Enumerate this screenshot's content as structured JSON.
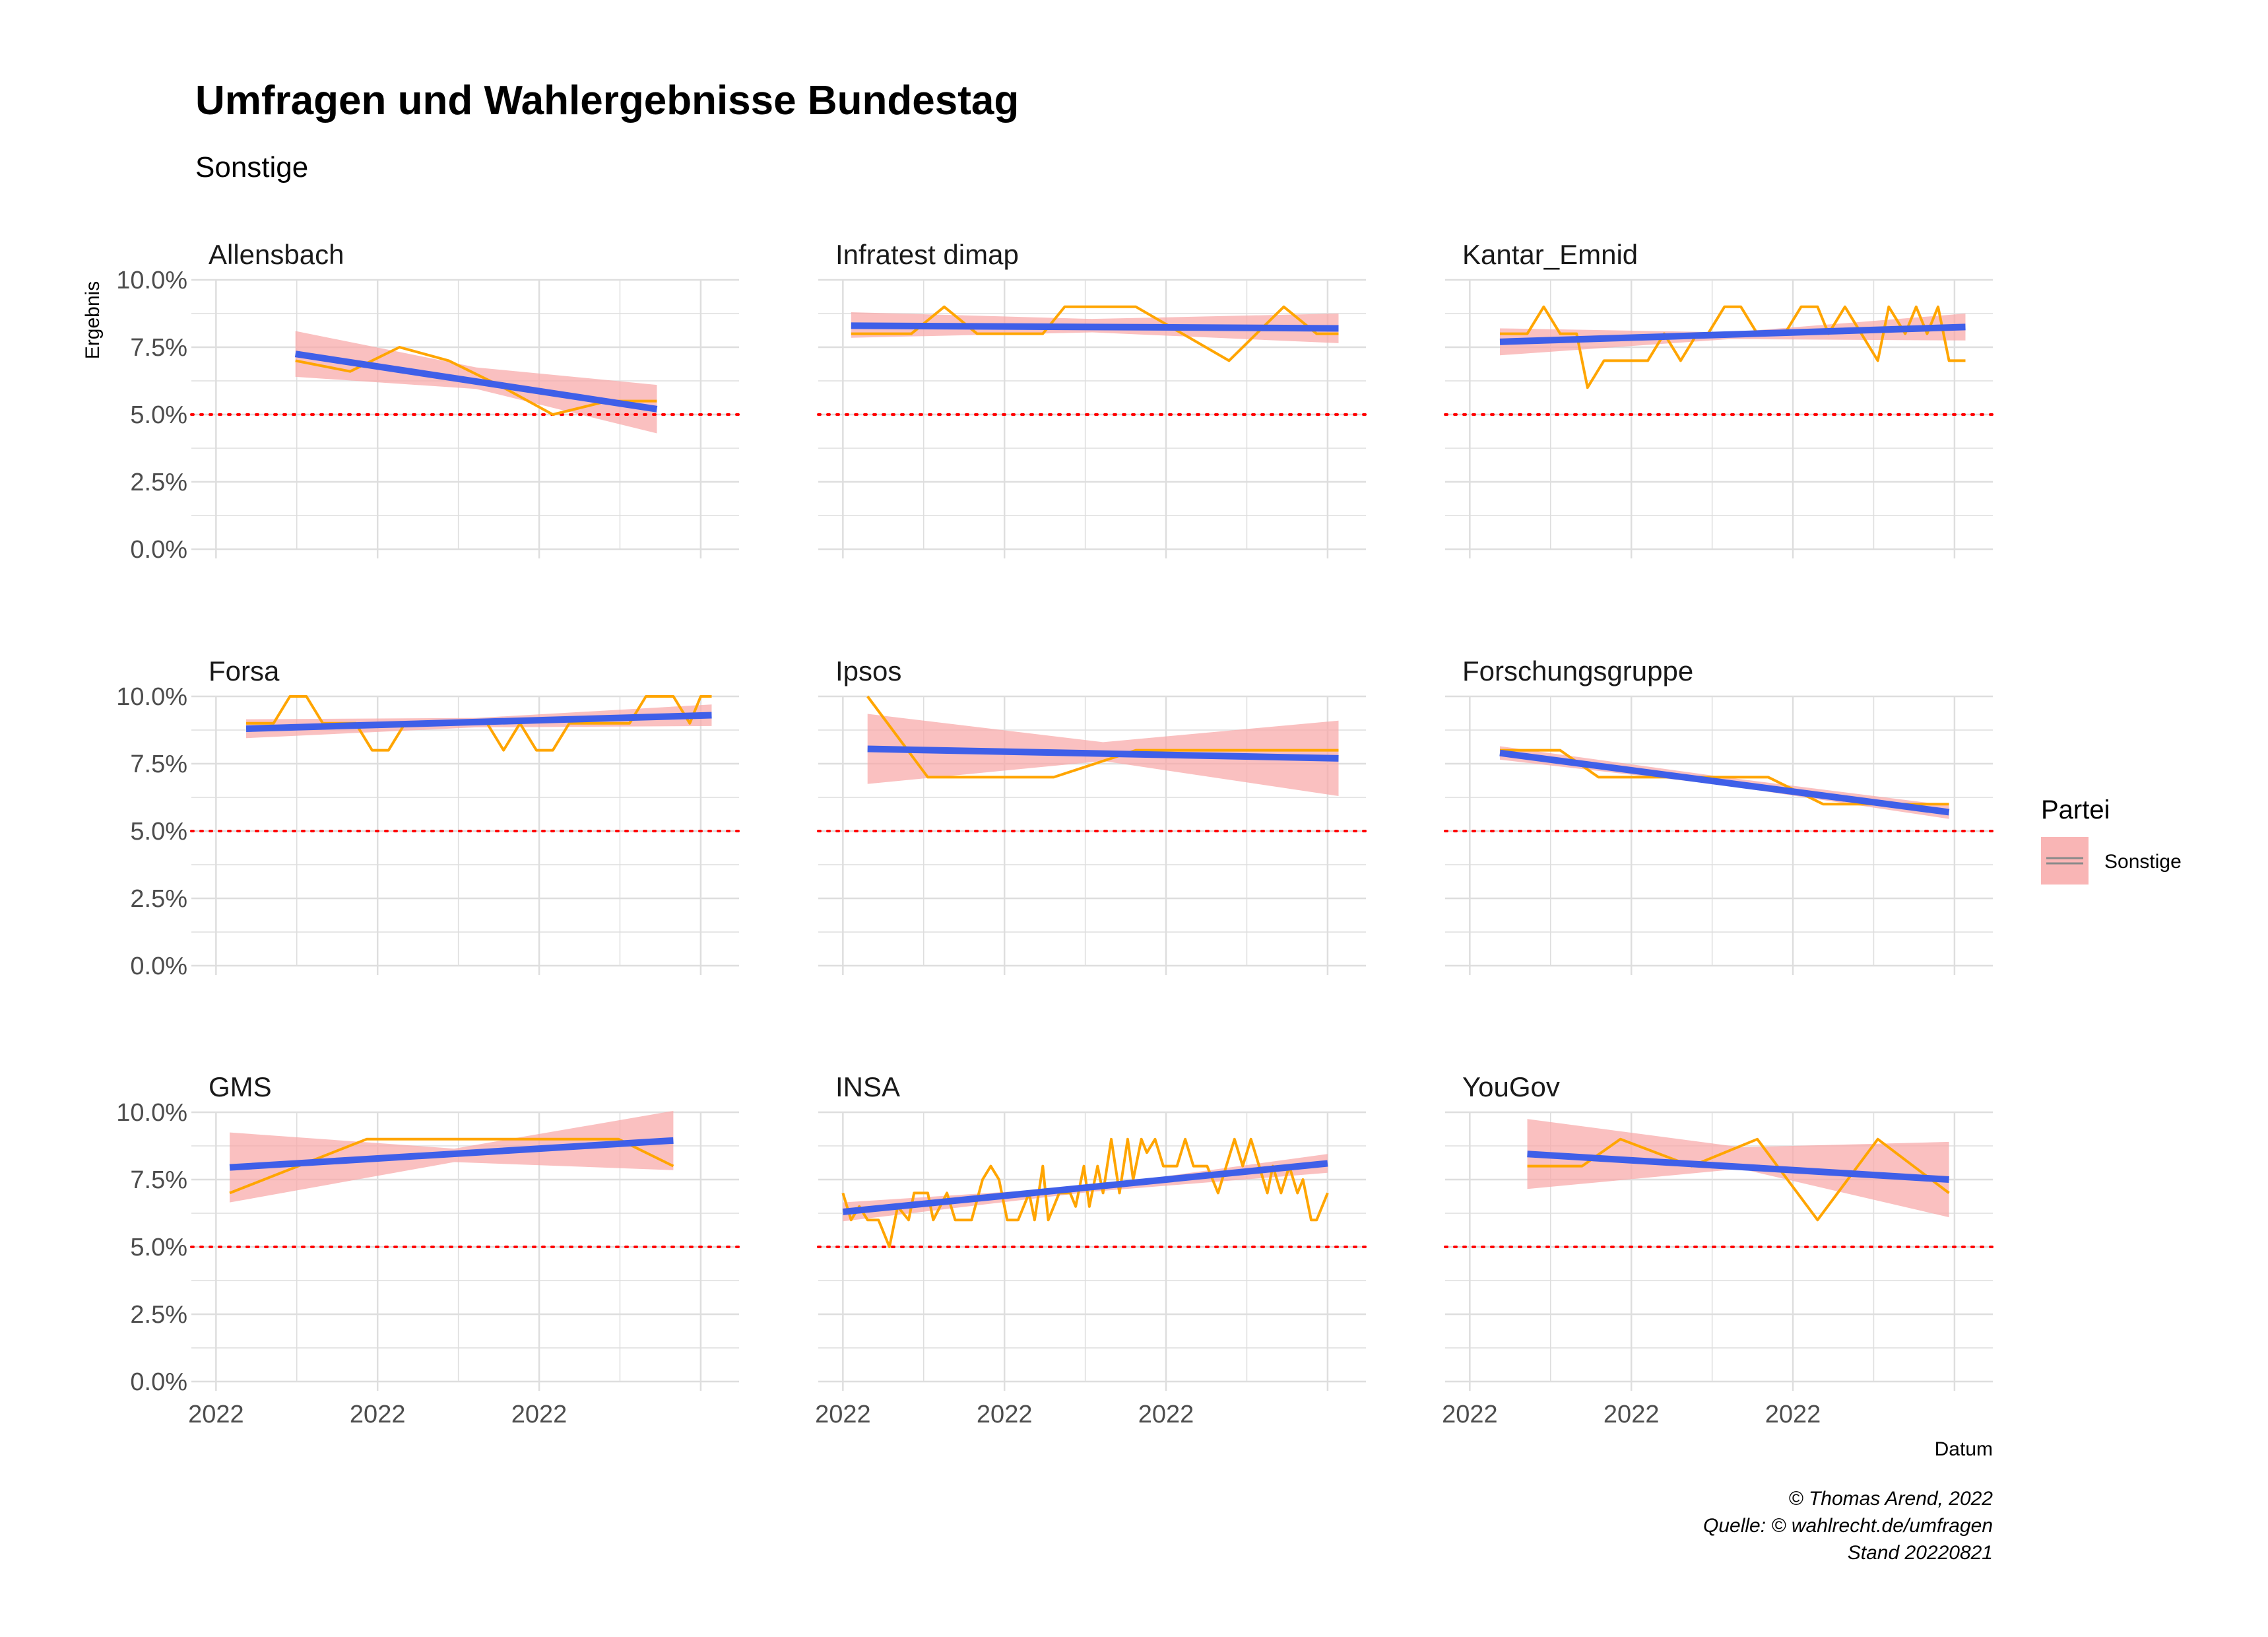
{
  "title": "Umfragen und Wahlergebnisse Bundestag",
  "subtitle": "Sonstige",
  "y_axis_label": "Ergebnis",
  "x_axis_label": "Datum",
  "legend": {
    "title": "Partei",
    "label": "Sonstige"
  },
  "caption": [
    "© Thomas Arend, 2022",
    "Quelle: © wahlrecht.de/umfragen",
    "Stand 20220821"
  ],
  "colors": {
    "poll_line": "#FFA500",
    "trend_line": "#3F5FE8",
    "ribbon": "#F8A8A8",
    "threshold": "#FF0000",
    "grid": "#DEDEDE"
  },
  "chart_data": {
    "type": "line",
    "facets": [
      "Allensbach",
      "Infratest dimap",
      "Kantar_Emnid",
      "Forsa",
      "Ipsos",
      "Forschungsgruppe",
      "GMS",
      "INSA",
      "YouGov"
    ],
    "ylim": [
      0,
      10
    ],
    "y_ticks": [
      0,
      2.5,
      5,
      7.5,
      10
    ],
    "y_tick_labels": [
      "0.0%",
      "2.5%",
      "5.0%",
      "7.5%",
      "10.0%"
    ],
    "x_tick_labels": [
      "2022",
      "2022",
      "2022"
    ],
    "threshold": 5.0,
    "grid": true,
    "legend_position": "right",
    "panels": [
      {
        "name": "Allensbach",
        "poll": [
          [
            0.19,
            7.0
          ],
          [
            0.29,
            6.6
          ],
          [
            0.38,
            7.5
          ],
          [
            0.47,
            7.0
          ],
          [
            0.57,
            6.0
          ],
          [
            0.66,
            5.0
          ],
          [
            0.76,
            5.5
          ],
          [
            0.85,
            5.5
          ]
        ],
        "trend": [
          [
            0.19,
            7.25
          ],
          [
            0.85,
            5.2
          ]
        ],
        "band_upper": [
          [
            0.19,
            8.1
          ],
          [
            0.52,
            6.75
          ],
          [
            0.85,
            6.1
          ]
        ],
        "band_lower": [
          [
            0.19,
            6.4
          ],
          [
            0.52,
            5.95
          ],
          [
            0.85,
            4.3
          ]
        ]
      },
      {
        "name": "Infratest dimap",
        "poll": [
          [
            0.06,
            8.0
          ],
          [
            0.17,
            8.0
          ],
          [
            0.23,
            9.0
          ],
          [
            0.29,
            8.0
          ],
          [
            0.41,
            8.0
          ],
          [
            0.45,
            9.0
          ],
          [
            0.58,
            9.0
          ],
          [
            0.75,
            7.0
          ],
          [
            0.85,
            9.0
          ],
          [
            0.91,
            8.0
          ],
          [
            0.95,
            8.0
          ]
        ],
        "trend": [
          [
            0.06,
            8.3
          ],
          [
            0.95,
            8.2
          ]
        ],
        "band_upper": [
          [
            0.06,
            8.8
          ],
          [
            0.5,
            8.55
          ],
          [
            0.95,
            8.75
          ]
        ],
        "band_lower": [
          [
            0.06,
            7.85
          ],
          [
            0.5,
            8.05
          ],
          [
            0.95,
            7.65
          ]
        ]
      },
      {
        "name": "Kantar_Emnid",
        "poll": [
          [
            0.1,
            8.0
          ],
          [
            0.15,
            8.0
          ],
          [
            0.18,
            9.0
          ],
          [
            0.21,
            8.0
          ],
          [
            0.24,
            8.0
          ],
          [
            0.26,
            6.0
          ],
          [
            0.29,
            7.0
          ],
          [
            0.37,
            7.0
          ],
          [
            0.4,
            8.0
          ],
          [
            0.43,
            7.0
          ],
          [
            0.46,
            8.0
          ],
          [
            0.48,
            8.0
          ],
          [
            0.51,
            9.0
          ],
          [
            0.54,
            9.0
          ],
          [
            0.57,
            8.0
          ],
          [
            0.62,
            8.0
          ],
          [
            0.65,
            9.0
          ],
          [
            0.68,
            9.0
          ],
          [
            0.7,
            8.0
          ],
          [
            0.73,
            9.0
          ],
          [
            0.76,
            8.0
          ],
          [
            0.79,
            7.0
          ],
          [
            0.81,
            9.0
          ],
          [
            0.84,
            8.0
          ],
          [
            0.86,
            9.0
          ],
          [
            0.88,
            8.0
          ],
          [
            0.9,
            9.0
          ],
          [
            0.92,
            7.0
          ],
          [
            0.95,
            7.0
          ]
        ],
        "trend": [
          [
            0.1,
            7.7
          ],
          [
            0.95,
            8.25
          ]
        ],
        "band_upper": [
          [
            0.1,
            8.2
          ],
          [
            0.52,
            8.05
          ],
          [
            0.95,
            8.75
          ]
        ],
        "band_lower": [
          [
            0.1,
            7.2
          ],
          [
            0.52,
            7.8
          ],
          [
            0.95,
            7.75
          ]
        ]
      },
      {
        "name": "Forsa",
        "poll": [
          [
            0.1,
            9.0
          ],
          [
            0.15,
            9.0
          ],
          [
            0.18,
            10.0
          ],
          [
            0.21,
            10.0
          ],
          [
            0.24,
            9.0
          ],
          [
            0.27,
            9.0
          ],
          [
            0.3,
            9.0
          ],
          [
            0.33,
            8.0
          ],
          [
            0.36,
            8.0
          ],
          [
            0.39,
            9.0
          ],
          [
            0.5,
            9.0
          ],
          [
            0.54,
            9.0
          ],
          [
            0.57,
            8.0
          ],
          [
            0.6,
            9.0
          ],
          [
            0.63,
            8.0
          ],
          [
            0.66,
            8.0
          ],
          [
            0.69,
            9.0
          ],
          [
            0.8,
            9.0
          ],
          [
            0.83,
            10.0
          ],
          [
            0.88,
            10.0
          ],
          [
            0.91,
            9.0
          ],
          [
            0.93,
            10.0
          ],
          [
            0.95,
            10.0
          ]
        ],
        "trend": [
          [
            0.1,
            8.8
          ],
          [
            0.95,
            9.3
          ]
        ],
        "band_upper": [
          [
            0.1,
            9.15
          ],
          [
            0.52,
            9.2
          ],
          [
            0.95,
            9.7
          ]
        ],
        "band_lower": [
          [
            0.1,
            8.45
          ],
          [
            0.52,
            8.85
          ],
          [
            0.95,
            8.9
          ]
        ]
      },
      {
        "name": "Ipsos",
        "poll": [
          [
            0.09,
            10.0
          ],
          [
            0.2,
            7.0
          ],
          [
            0.43,
            7.0
          ],
          [
            0.58,
            8.0
          ],
          [
            0.95,
            8.0
          ]
        ],
        "trend": [
          [
            0.09,
            8.05
          ],
          [
            0.95,
            7.7
          ]
        ],
        "band_upper": [
          [
            0.09,
            9.35
          ],
          [
            0.52,
            8.3
          ],
          [
            0.95,
            9.1
          ]
        ],
        "band_lower": [
          [
            0.09,
            6.75
          ],
          [
            0.52,
            7.6
          ],
          [
            0.95,
            6.3
          ]
        ]
      },
      {
        "name": "Forschungsgruppe",
        "poll": [
          [
            0.1,
            8.0
          ],
          [
            0.21,
            8.0
          ],
          [
            0.28,
            7.0
          ],
          [
            0.38,
            7.0
          ],
          [
            0.48,
            7.0
          ],
          [
            0.59,
            7.0
          ],
          [
            0.69,
            6.0
          ],
          [
            0.79,
            6.0
          ],
          [
            0.92,
            6.0
          ]
        ],
        "trend": [
          [
            0.1,
            7.9
          ],
          [
            0.92,
            5.7
          ]
        ],
        "band_upper": [
          [
            0.1,
            8.15
          ],
          [
            0.51,
            7.0
          ],
          [
            0.92,
            5.95
          ]
        ],
        "band_lower": [
          [
            0.1,
            7.65
          ],
          [
            0.51,
            6.7
          ],
          [
            0.92,
            5.45
          ]
        ]
      },
      {
        "name": "GMS",
        "poll": [
          [
            0.07,
            7.0
          ],
          [
            0.32,
            9.0
          ],
          [
            0.58,
            9.0
          ],
          [
            0.78,
            9.0
          ],
          [
            0.88,
            8.0
          ]
        ],
        "trend": [
          [
            0.07,
            7.95
          ],
          [
            0.88,
            8.95
          ]
        ],
        "band_upper": [
          [
            0.07,
            9.25
          ],
          [
            0.48,
            8.65
          ],
          [
            0.88,
            10.05
          ]
        ],
        "band_lower": [
          [
            0.07,
            6.65
          ],
          [
            0.48,
            8.15
          ],
          [
            0.88,
            7.85
          ]
        ]
      },
      {
        "name": "INSA",
        "poll": [
          [
            0.045,
            7.0
          ],
          [
            0.06,
            6.0
          ],
          [
            0.075,
            6.5
          ],
          [
            0.09,
            6.0
          ],
          [
            0.11,
            6.0
          ],
          [
            0.13,
            5.0
          ],
          [
            0.145,
            6.5
          ],
          [
            0.165,
            6.0
          ],
          [
            0.175,
            7.0
          ],
          [
            0.2,
            7.0
          ],
          [
            0.21,
            6.0
          ],
          [
            0.235,
            7.0
          ],
          [
            0.25,
            6.0
          ],
          [
            0.28,
            6.0
          ],
          [
            0.3,
            7.5
          ],
          [
            0.315,
            8.0
          ],
          [
            0.33,
            7.5
          ],
          [
            0.345,
            6.0
          ],
          [
            0.365,
            6.0
          ],
          [
            0.385,
            7.0
          ],
          [
            0.395,
            6.0
          ],
          [
            0.41,
            8.0
          ],
          [
            0.42,
            6.0
          ],
          [
            0.44,
            7.0
          ],
          [
            0.46,
            7.0
          ],
          [
            0.47,
            6.5
          ],
          [
            0.485,
            8.0
          ],
          [
            0.495,
            6.5
          ],
          [
            0.51,
            8.0
          ],
          [
            0.52,
            7.0
          ],
          [
            0.535,
            9.0
          ],
          [
            0.55,
            7.0
          ],
          [
            0.565,
            9.0
          ],
          [
            0.575,
            7.5
          ],
          [
            0.59,
            9.0
          ],
          [
            0.6,
            8.5
          ],
          [
            0.615,
            9.0
          ],
          [
            0.63,
            8.0
          ],
          [
            0.655,
            8.0
          ],
          [
            0.67,
            9.0
          ],
          [
            0.685,
            8.0
          ],
          [
            0.71,
            8.0
          ],
          [
            0.73,
            7.0
          ],
          [
            0.745,
            8.0
          ],
          [
            0.76,
            9.0
          ],
          [
            0.775,
            8.0
          ],
          [
            0.79,
            9.0
          ],
          [
            0.805,
            8.0
          ],
          [
            0.82,
            7.0
          ],
          [
            0.83,
            8.0
          ],
          [
            0.845,
            7.0
          ],
          [
            0.86,
            8.0
          ],
          [
            0.875,
            7.0
          ],
          [
            0.885,
            7.5
          ],
          [
            0.9,
            6.0
          ],
          [
            0.91,
            6.0
          ],
          [
            0.93,
            7.0
          ]
        ],
        "trend": [
          [
            0.045,
            6.3
          ],
          [
            0.93,
            8.1
          ]
        ],
        "band_upper": [
          [
            0.045,
            6.65
          ],
          [
            0.5,
            7.25
          ],
          [
            0.93,
            8.45
          ]
        ],
        "band_lower": [
          [
            0.045,
            5.95
          ],
          [
            0.5,
            7.05
          ],
          [
            0.93,
            7.75
          ]
        ]
      },
      {
        "name": "YouGov",
        "poll": [
          [
            0.15,
            8.0
          ],
          [
            0.25,
            8.0
          ],
          [
            0.32,
            9.0
          ],
          [
            0.45,
            8.0
          ],
          [
            0.57,
            9.0
          ],
          [
            0.68,
            6.0
          ],
          [
            0.79,
            9.0
          ],
          [
            0.92,
            7.0
          ]
        ],
        "trend": [
          [
            0.15,
            8.45
          ],
          [
            0.92,
            7.5
          ]
        ],
        "band_upper": [
          [
            0.15,
            9.75
          ],
          [
            0.54,
            8.7
          ],
          [
            0.92,
            8.9
          ]
        ],
        "band_lower": [
          [
            0.15,
            7.15
          ],
          [
            0.54,
            7.9
          ],
          [
            0.92,
            6.1
          ]
        ]
      }
    ]
  }
}
